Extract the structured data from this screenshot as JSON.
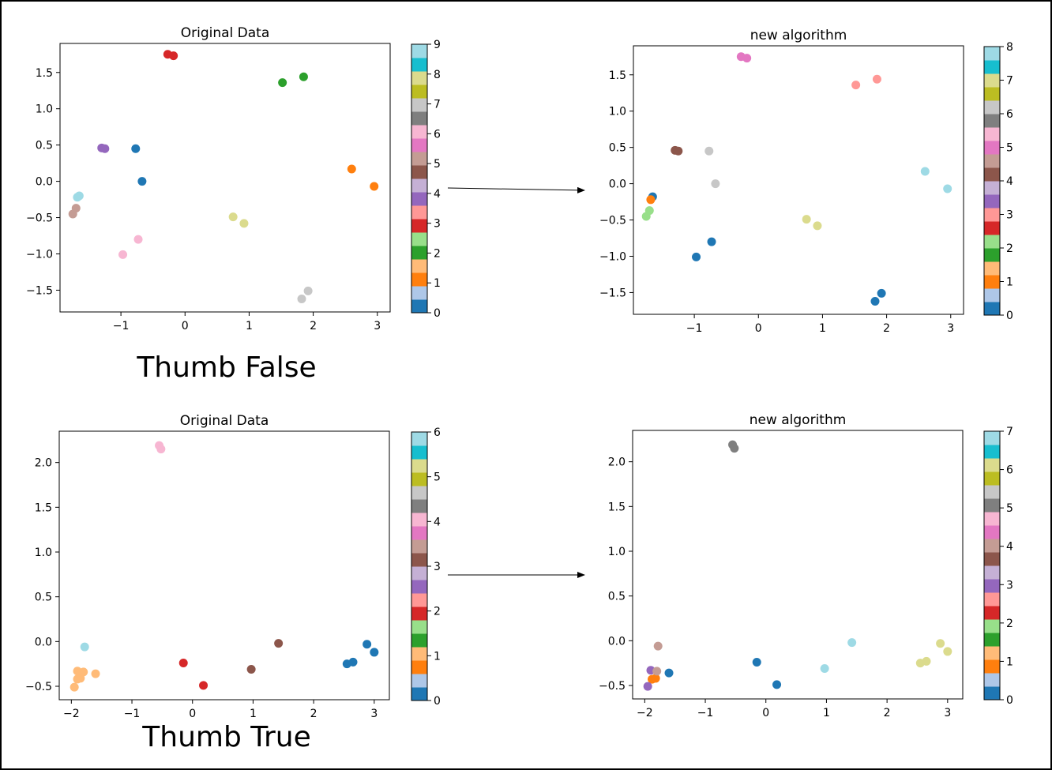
{
  "captions": {
    "top": "Thumb False",
    "bottom": "Thumb True"
  },
  "tab20": [
    "#1f77b4",
    "#aec7e8",
    "#ff7f0e",
    "#ffbb78",
    "#2ca02c",
    "#98df8a",
    "#d62728",
    "#ff9896",
    "#9467bd",
    "#c5b0d5",
    "#8c564b",
    "#c49c94",
    "#e377c2",
    "#f7b6d2",
    "#7f7f7f",
    "#c7c7c7",
    "#bcbd22",
    "#dbdb8d",
    "#17becf",
    "#9edae5"
  ],
  "chart_data": [
    {
      "type": "scatter",
      "title": "Original Data",
      "xlim": [
        -1.95,
        3.2
      ],
      "ylim": [
        -1.8,
        1.9
      ],
      "xticks": [
        -1,
        0,
        1,
        2,
        3
      ],
      "yticks": [
        -1.5,
        -1.0,
        -0.5,
        0.0,
        0.5,
        1.0,
        1.5
      ],
      "colorbar": {
        "min": 0,
        "max": 9,
        "ticks": [
          0,
          1,
          2,
          3,
          4,
          5,
          6,
          7,
          8,
          9
        ]
      },
      "points": [
        {
          "x": -0.77,
          "y": 0.45,
          "c": 0
        },
        {
          "x": -0.67,
          "y": 0.0,
          "c": 0
        },
        {
          "x": 2.6,
          "y": 0.17,
          "c": 1
        },
        {
          "x": 2.95,
          "y": -0.07,
          "c": 1
        },
        {
          "x": 1.52,
          "y": 1.36,
          "c": 2
        },
        {
          "x": 1.85,
          "y": 1.44,
          "c": 2
        },
        {
          "x": -0.27,
          "y": 1.75,
          "c": 3
        },
        {
          "x": -0.18,
          "y": 1.73,
          "c": 3
        },
        {
          "x": -1.3,
          "y": 0.46,
          "c": 4
        },
        {
          "x": -1.25,
          "y": 0.45,
          "c": 4
        },
        {
          "x": -1.75,
          "y": -0.45,
          "c": 5
        },
        {
          "x": -1.7,
          "y": -0.37,
          "c": 5
        },
        {
          "x": -0.97,
          "y": -1.01,
          "c": 6
        },
        {
          "x": -0.73,
          "y": -0.8,
          "c": 6
        },
        {
          "x": 1.82,
          "y": -1.62,
          "c": 7
        },
        {
          "x": 1.92,
          "y": -1.51,
          "c": 7
        },
        {
          "x": 0.75,
          "y": -0.49,
          "c": 8
        },
        {
          "x": 0.92,
          "y": -0.58,
          "c": 8
        },
        {
          "x": -1.68,
          "y": -0.22,
          "c": 9
        },
        {
          "x": -1.65,
          "y": -0.2,
          "c": 9
        }
      ]
    },
    {
      "type": "scatter",
      "title": "new algorithm",
      "xlim": [
        -1.95,
        3.2
      ],
      "ylim": [
        -1.8,
        1.9
      ],
      "xticks": [
        -1,
        0,
        1,
        2,
        3
      ],
      "yticks": [
        -1.5,
        -1.0,
        -0.5,
        0.0,
        0.5,
        1.0,
        1.5
      ],
      "colorbar": {
        "min": 0,
        "max": 8,
        "ticks": [
          0,
          1,
          2,
          3,
          4,
          5,
          6,
          7,
          8
        ]
      },
      "points": [
        {
          "x": -1.65,
          "y": -0.18,
          "c": 0
        },
        {
          "x": -0.97,
          "y": -1.01,
          "c": 0
        },
        {
          "x": -0.73,
          "y": -0.8,
          "c": 0
        },
        {
          "x": 1.82,
          "y": -1.62,
          "c": 0
        },
        {
          "x": 1.92,
          "y": -1.51,
          "c": 0
        },
        {
          "x": -1.68,
          "y": -0.22,
          "c": 1
        },
        {
          "x": -1.75,
          "y": -0.45,
          "c": 2
        },
        {
          "x": -1.7,
          "y": -0.37,
          "c": 2
        },
        {
          "x": 1.52,
          "y": 1.36,
          "c": 3
        },
        {
          "x": 1.85,
          "y": 1.44,
          "c": 3
        },
        {
          "x": -1.3,
          "y": 0.46,
          "c": 4
        },
        {
          "x": -1.25,
          "y": 0.45,
          "c": 4
        },
        {
          "x": -0.27,
          "y": 1.75,
          "c": 5
        },
        {
          "x": -0.18,
          "y": 1.73,
          "c": 5
        },
        {
          "x": -0.77,
          "y": 0.45,
          "c": 6
        },
        {
          "x": -0.67,
          "y": 0.0,
          "c": 6
        },
        {
          "x": 0.75,
          "y": -0.49,
          "c": 7
        },
        {
          "x": 0.92,
          "y": -0.58,
          "c": 7
        },
        {
          "x": 2.6,
          "y": 0.17,
          "c": 8
        },
        {
          "x": 2.95,
          "y": -0.07,
          "c": 8
        }
      ]
    },
    {
      "type": "scatter",
      "title": "Original Data",
      "xlim": [
        -2.2,
        3.25
      ],
      "ylim": [
        -0.65,
        2.35
      ],
      "xticks": [
        -2,
        -1,
        0,
        1,
        2,
        3
      ],
      "yticks": [
        -0.5,
        0.0,
        0.5,
        1.0,
        1.5,
        2.0
      ],
      "colorbar": {
        "min": 0,
        "max": 6,
        "ticks": [
          0,
          1,
          2,
          3,
          4,
          5,
          6
        ]
      },
      "points": [
        {
          "x": 2.55,
          "y": -0.25,
          "c": 0
        },
        {
          "x": 2.65,
          "y": -0.23,
          "c": 0
        },
        {
          "x": 2.88,
          "y": -0.03,
          "c": 0
        },
        {
          "x": 3.0,
          "y": -0.12,
          "c": 0
        },
        {
          "x": -1.95,
          "y": -0.51,
          "c": 1
        },
        {
          "x": -1.9,
          "y": -0.42,
          "c": 1
        },
        {
          "x": -1.85,
          "y": -0.41,
          "c": 1
        },
        {
          "x": -1.9,
          "y": -0.33,
          "c": 1
        },
        {
          "x": -1.8,
          "y": -0.34,
          "c": 1
        },
        {
          "x": -1.6,
          "y": -0.36,
          "c": 1
        },
        {
          "x": -0.15,
          "y": -0.24,
          "c": 2
        },
        {
          "x": 0.18,
          "y": -0.49,
          "c": 2
        },
        {
          "x": 0.97,
          "y": -0.31,
          "c": 3
        },
        {
          "x": 1.42,
          "y": -0.02,
          "c": 3
        },
        {
          "x": -0.55,
          "y": 2.19,
          "c": 4
        },
        {
          "x": -0.52,
          "y": 2.15,
          "c": 4
        },
        {
          "x": -1.78,
          "y": -0.06,
          "c": 6
        }
      ]
    },
    {
      "type": "scatter",
      "title": "new algorithm",
      "xlim": [
        -2.2,
        3.25
      ],
      "ylim": [
        -0.65,
        2.35
      ],
      "xticks": [
        -2,
        -1,
        0,
        1,
        2,
        3
      ],
      "yticks": [
        -0.5,
        0.0,
        0.5,
        1.0,
        1.5,
        2.0
      ],
      "colorbar": {
        "min": 0,
        "max": 7,
        "ticks": [
          0,
          1,
          2,
          3,
          4,
          5,
          6,
          7
        ]
      },
      "points": [
        {
          "x": -1.6,
          "y": -0.36,
          "c": 0
        },
        {
          "x": -0.15,
          "y": -0.24,
          "c": 0
        },
        {
          "x": 0.18,
          "y": -0.49,
          "c": 0
        },
        {
          "x": -1.88,
          "y": -0.43,
          "c": 1
        },
        {
          "x": -1.82,
          "y": -0.42,
          "c": 1
        },
        {
          "x": -1.95,
          "y": -0.51,
          "c": 3
        },
        {
          "x": -1.9,
          "y": -0.33,
          "c": 3
        },
        {
          "x": -1.8,
          "y": -0.34,
          "c": 4
        },
        {
          "x": -1.78,
          "y": -0.06,
          "c": 4
        },
        {
          "x": -0.55,
          "y": 2.19,
          "c": 5
        },
        {
          "x": -0.52,
          "y": 2.15,
          "c": 5
        },
        {
          "x": 2.55,
          "y": -0.25,
          "c": 6
        },
        {
          "x": 2.65,
          "y": -0.23,
          "c": 6
        },
        {
          "x": 2.88,
          "y": -0.03,
          "c": 6
        },
        {
          "x": 3.0,
          "y": -0.12,
          "c": 6
        },
        {
          "x": 0.97,
          "y": -0.31,
          "c": 7
        },
        {
          "x": 1.42,
          "y": -0.02,
          "c": 7
        }
      ]
    }
  ]
}
